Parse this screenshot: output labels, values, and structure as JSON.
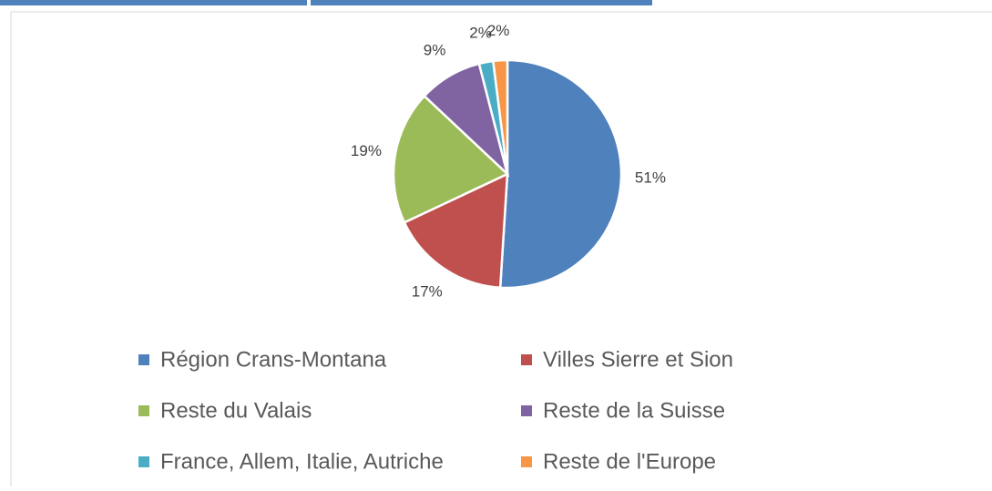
{
  "chart_data": {
    "type": "pie",
    "categories": [
      "Région Crans-Montana",
      "Villes Sierre et Sion",
      "Reste du Valais",
      "Reste de la Suisse",
      "France, Allem, Italie, Autriche",
      "Reste de l'Europe"
    ],
    "values": [
      51,
      17,
      19,
      9,
      2,
      2
    ],
    "value_labels": [
      "51%",
      "17%",
      "19%",
      "9%",
      "2%",
      "2%"
    ],
    "colors": [
      "#4f81bd",
      "#c0504d",
      "#9bbb59",
      "#8064a2",
      "#4bacc6",
      "#f79646"
    ],
    "legend": "bottom"
  }
}
